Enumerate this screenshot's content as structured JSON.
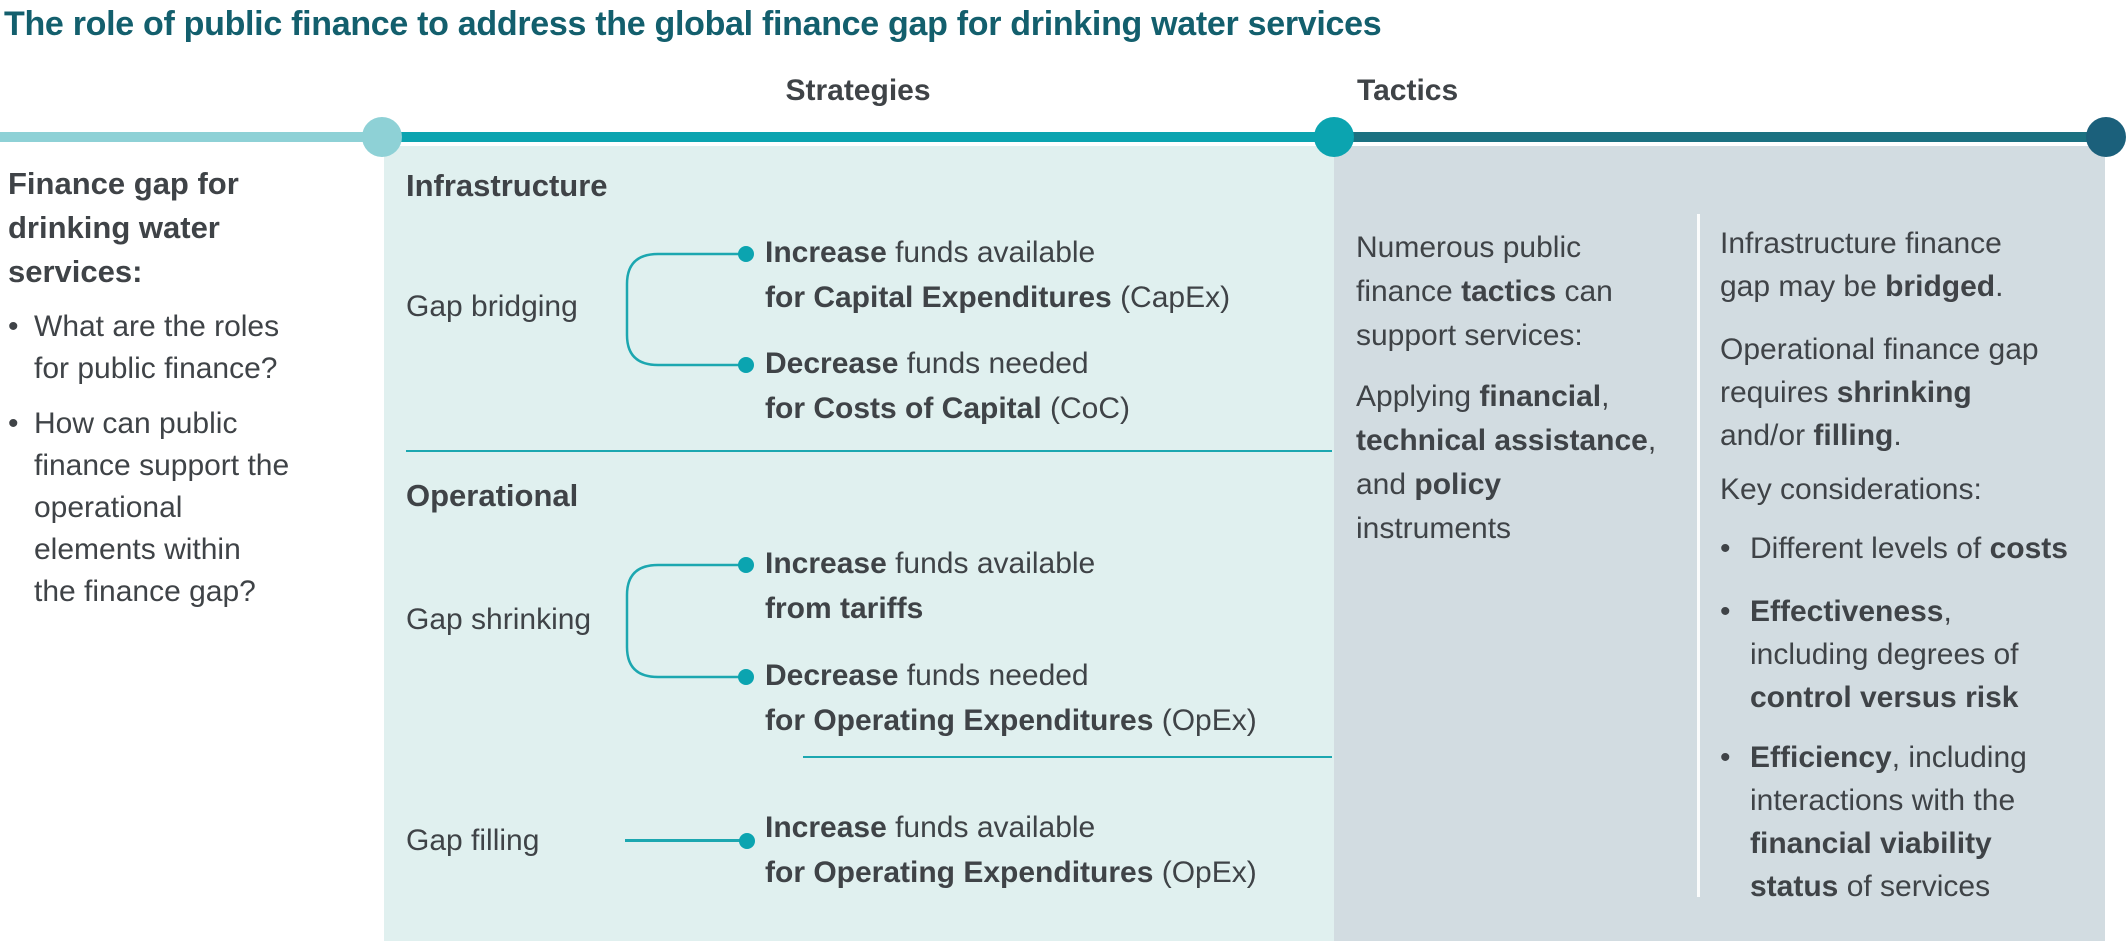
{
  "title": "The role of public finance to address the global finance gap for drinking water services",
  "headers": {
    "strategies": "Strategies",
    "tactics": "Tactics"
  },
  "colors": {
    "title_teal": "#135f6d",
    "light_teal": "#8ed1d6",
    "teal": "#0ba4b0",
    "dark_teal_line": "#1b7181",
    "dark_teal_dot": "#1b607b",
    "panel_light": "#e0f0ef",
    "panel_gray": "#d2dce1",
    "text_dark": "#3f4347",
    "connector_teal": "#1ca7b0"
  },
  "intro": {
    "heading": "Finance gap for\ndrinking water\nservices:",
    "bullet_glyph": "•",
    "bullets": [
      "What are the roles\nfor public finance?",
      "How can public\nfinance support the\noperational\nelements within\nthe finance gap?"
    ]
  },
  "strategies": {
    "infrastructure": {
      "heading": "Infrastructure",
      "gap_label": "Gap bridging",
      "item1_line1": [
        {
          "t": "Increase",
          "b": 1
        },
        {
          "t": " funds available",
          "b": 0
        }
      ],
      "item1_line2": [
        {
          "t": "for Capital Expenditures",
          "b": 1
        },
        {
          "t": " (CapEx)",
          "b": 0
        }
      ],
      "item2_line1": [
        {
          "t": "Decrease",
          "b": 1
        },
        {
          "t": " funds needed",
          "b": 0
        }
      ],
      "item2_line2": [
        {
          "t": "for Costs of Capital",
          "b": 1
        },
        {
          "t": " (CoC)",
          "b": 0
        }
      ]
    },
    "operational": {
      "heading": "Operational",
      "gap_label": "Gap shrinking",
      "item1_line1": [
        {
          "t": "Increase",
          "b": 1
        },
        {
          "t": " funds available",
          "b": 0
        }
      ],
      "item1_line2": [
        {
          "t": "from tariffs",
          "b": 1
        }
      ],
      "item2_line1": [
        {
          "t": "Decrease",
          "b": 1
        },
        {
          "t": " funds needed",
          "b": 0
        }
      ],
      "item2_line2": [
        {
          "t": "for Operating Expenditures",
          "b": 1
        },
        {
          "t": " (OpEx)",
          "b": 0
        }
      ]
    },
    "filling": {
      "gap_label": "Gap filling",
      "item1_line1": [
        {
          "t": "Increase",
          "b": 1
        },
        {
          "t": " funds available",
          "b": 0
        }
      ],
      "item1_line2": [
        {
          "t": "for Operating Expenditures",
          "b": 1
        },
        {
          "t": " (OpEx)",
          "b": 0
        }
      ]
    }
  },
  "tactics": {
    "intro_para": [
      {
        "t": "Numerous public\nfinance ",
        "b": 0
      },
      {
        "t": "tactics",
        "b": 1
      },
      {
        "t": " can\nsupport services:",
        "b": 0
      }
    ],
    "instruments_para": [
      {
        "t": "Applying ",
        "b": 0
      },
      {
        "t": "financial",
        "b": 1
      },
      {
        "t": ",\n",
        "b": 0
      },
      {
        "t": "technical assistance",
        "b": 1
      },
      {
        "t": ",\nand ",
        "b": 0
      },
      {
        "t": "policy",
        "b": 1
      },
      {
        "t": "\ninstruments",
        "b": 0
      }
    ],
    "outcome_infrastructure": [
      {
        "t": "Infrastructure finance\ngap may be ",
        "b": 0
      },
      {
        "t": "bridged",
        "b": 1
      },
      {
        "t": ".",
        "b": 0
      }
    ],
    "outcome_operational": [
      {
        "t": "Operational finance gap\nrequires ",
        "b": 0
      },
      {
        "t": "shrinking",
        "b": 1
      },
      {
        "t": "\nand/or ",
        "b": 0
      },
      {
        "t": "filling",
        "b": 1
      },
      {
        "t": ".",
        "b": 0
      }
    ],
    "considerations_heading": "Key considerations:",
    "bullet_glyph": "•",
    "consideration_bullets": [
      [
        {
          "t": "Different levels of ",
          "b": 0
        },
        {
          "t": "costs",
          "b": 1
        }
      ],
      [
        {
          "t": "Effectiveness",
          "b": 1
        },
        {
          "t": ",\nincluding degrees of\n",
          "b": 0
        },
        {
          "t": "control versus risk",
          "b": 1
        }
      ],
      [
        {
          "t": "Efficiency",
          "b": 1
        },
        {
          "t": ", including\ninteractions with the\n",
          "b": 0
        },
        {
          "t": "financial viability",
          "b": 1
        },
        {
          "t": "\n",
          "b": 0
        },
        {
          "t": "status",
          "b": 1
        },
        {
          "t": " of services",
          "b": 0
        }
      ]
    ]
  }
}
